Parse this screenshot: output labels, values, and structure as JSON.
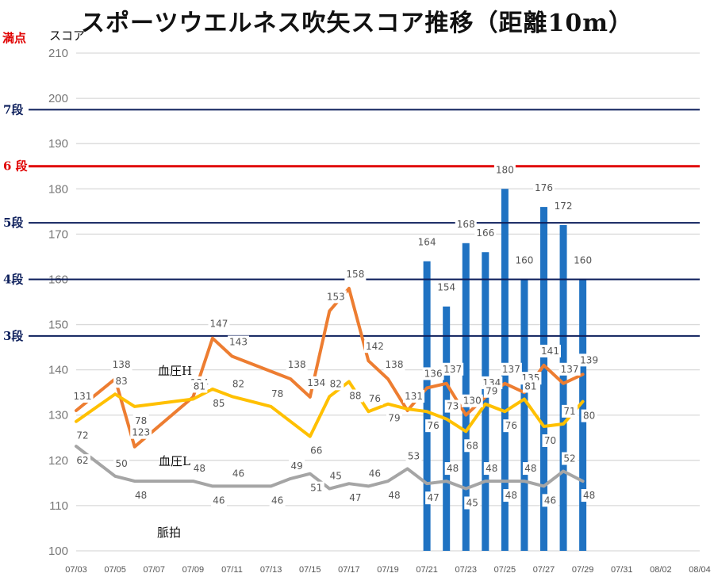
{
  "title": "スポーツウエルネス吹矢スコア推移（距離10m）",
  "header": {
    "full_score_label": "満点",
    "score_label": "スコア"
  },
  "colors": {
    "bars": "#1f72c2",
    "bp_high": "#ed7d31",
    "bp_low": "#ffc000",
    "pulse": "#a5a5a5",
    "grade_line": "#0d1f5c",
    "grade6": "#e00000",
    "grid": "#d9d9d9"
  },
  "chart_data": {
    "type": "bar",
    "ylim": [
      100,
      210
    ],
    "yticks": [
      100,
      110,
      120,
      130,
      140,
      150,
      160,
      170,
      180,
      190,
      200,
      210
    ],
    "x_tick_labels": [
      "07/03",
      "07/05",
      "07/07",
      "07/09",
      "07/11",
      "07/13",
      "07/15",
      "07/17",
      "07/19",
      "07/21",
      "07/23",
      "07/25",
      "07/27",
      "07/29",
      "07/31",
      "08/02",
      "08/04"
    ],
    "grades": [
      {
        "label": "7段",
        "score": 197.5,
        "color": "#0d1f5c"
      },
      {
        "label": "6 段",
        "score": 185,
        "color": "#e00000"
      },
      {
        "label": "5段",
        "score": 172.5,
        "color": "#0d1f5c"
      },
      {
        "label": "4段",
        "score": 160,
        "color": "#0d1f5c"
      },
      {
        "label": "3段",
        "score": 147.5,
        "color": "#0d1f5c"
      }
    ],
    "scores": {
      "name": "スコア",
      "x": [
        "07/21",
        "07/22",
        "07/23",
        "07/24",
        "07/25",
        "07/26",
        "07/27",
        "07/28",
        "07/29"
      ],
      "values": [
        164,
        154,
        168,
        166,
        180,
        160,
        176,
        172,
        160
      ],
      "labels": [
        "164",
        "154",
        "168",
        "166",
        "180",
        "160",
        "176",
        "172",
        "160"
      ]
    },
    "bp_high": {
      "name": "血圧H",
      "x": [
        "07/03",
        "07/05",
        "07/06",
        "07/09",
        "07/10",
        "07/11",
        "07/14",
        "07/15",
        "07/16",
        "07/17",
        "07/18",
        "07/19",
        "07/20",
        "07/21",
        "07/22",
        "07/23",
        "07/24",
        "07/25",
        "07/26",
        "07/27",
        "07/28",
        "07/29"
      ],
      "values": [
        131,
        138,
        123,
        134,
        147,
        143,
        138,
        134,
        153,
        158,
        142,
        138,
        131,
        136,
        137,
        130,
        134,
        137,
        135,
        141,
        137,
        139
      ],
      "labels": [
        "131",
        "138",
        "123",
        "134",
        "147",
        "143",
        "138",
        "134",
        "153",
        "158",
        "142",
        "138",
        "131",
        "136",
        "137",
        "130",
        "134",
        "137",
        "135",
        "141",
        "137",
        "139"
      ],
      "scale": [
        100,
        210
      ]
    },
    "bp_low": {
      "name": "血圧L",
      "x": [
        "07/03",
        "07/05",
        "07/06",
        "07/09",
        "07/10",
        "07/11",
        "07/12",
        "07/13",
        "07/15",
        "07/16",
        "07/17",
        "07/18",
        "07/19",
        "07/20",
        "07/21",
        "07/22",
        "07/23",
        "07/24",
        "07/25",
        "07/26",
        "07/27",
        "07/28",
        "07/29"
      ],
      "values": [
        72,
        83,
        78,
        81,
        85,
        82,
        80,
        78,
        66,
        82,
        88,
        76,
        79,
        77,
        76,
        73,
        68,
        79,
        76,
        81,
        70,
        71,
        80
      ],
      "labels": [
        "72",
        "83",
        "78",
        "81",
        "85",
        "82",
        "",
        "78",
        "66",
        "82",
        "88",
        "76",
        "79",
        "",
        "76",
        "73",
        "68",
        "79",
        "76",
        "81",
        "70",
        "71",
        "80"
      ],
      "scale": [
        20,
        220
      ]
    },
    "pulse": {
      "name": "脈拍",
      "x": [
        "07/03",
        "07/05",
        "07/06",
        "07/09",
        "07/10",
        "07/11",
        "07/13",
        "07/14",
        "07/15",
        "07/16",
        "07/17",
        "07/18",
        "07/19",
        "07/20",
        "07/21",
        "07/22",
        "07/23",
        "07/24",
        "07/25",
        "07/26",
        "07/27",
        "07/28",
        "07/29"
      ],
      "values": [
        62,
        50,
        48,
        48,
        46,
        46,
        46,
        49,
        51,
        45,
        47,
        46,
        48,
        53,
        47,
        48,
        45,
        48,
        48,
        48,
        46,
        52,
        48
      ],
      "labels": [
        "62",
        "50",
        "48",
        "48",
        "46",
        "46",
        "46",
        "49",
        "51",
        "45",
        "47",
        "46",
        "48",
        "53",
        "47",
        "48",
        "45",
        "48",
        "48",
        "48",
        "46",
        "52",
        "48"
      ],
      "scale": [
        20,
        220
      ]
    }
  }
}
